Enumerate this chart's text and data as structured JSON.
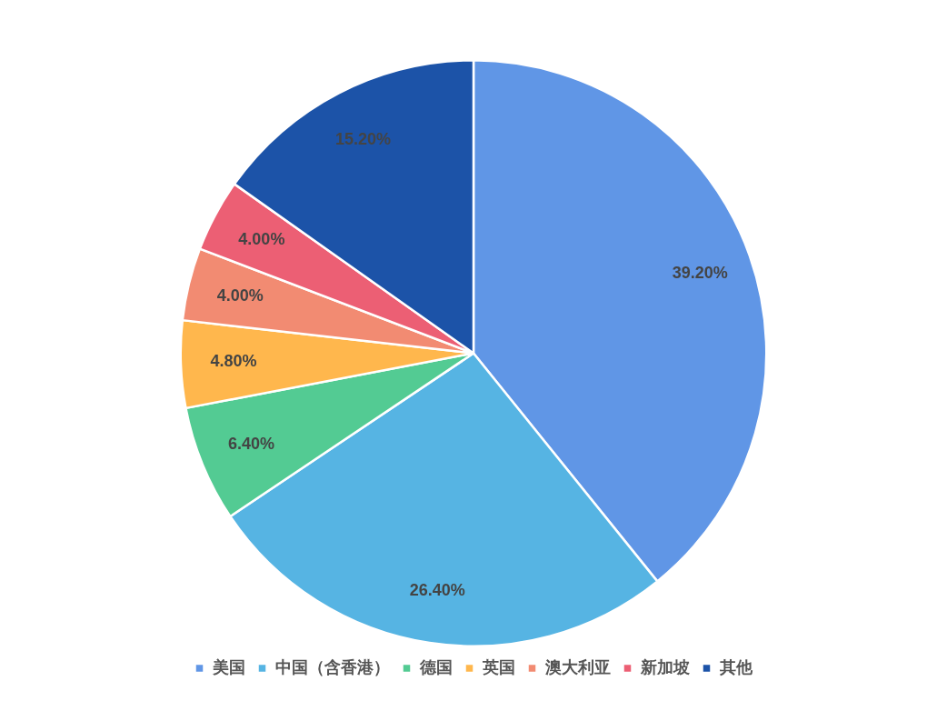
{
  "chart_data": {
    "type": "pie",
    "categories": [
      "美国",
      "中国（含香港）",
      "德国",
      "英国",
      "澳大利亚",
      "新加坡",
      "其他"
    ],
    "values": [
      39.2,
      26.4,
      6.4,
      4.8,
      4.0,
      4.0,
      15.2
    ],
    "colors": [
      "#6096e6",
      "#56b4e3",
      "#53cb93",
      "#ffb74d",
      "#f28b72",
      "#ec5f74",
      "#1c53a8"
    ],
    "value_labels": [
      "39.20%",
      "26.40%",
      "6.40%",
      "4.80%",
      "4.00%",
      "4.00%",
      "15.20%"
    ],
    "legend": "bottom"
  }
}
